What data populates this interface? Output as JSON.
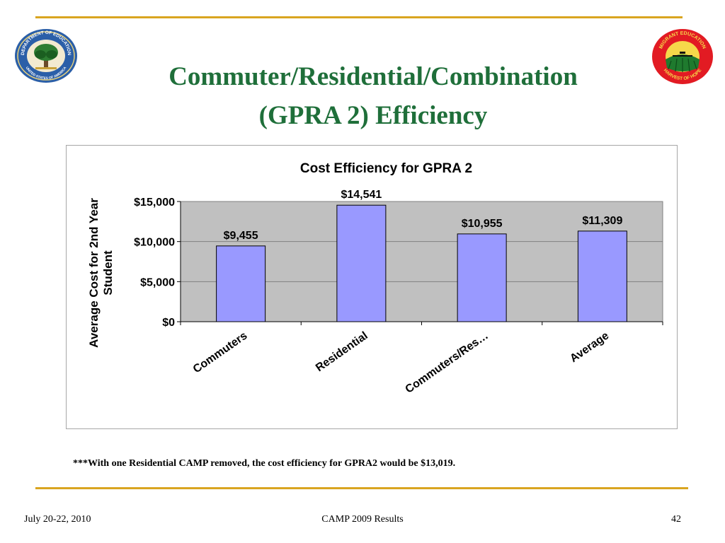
{
  "slide": {
    "title_line1": "Commuter/Residential/Combination",
    "title_line2": "(GPRA 2) Efficiency",
    "footnote": "***With one Residential CAMP removed, the cost efficiency for GPRA2 would be $13,019.",
    "footer": {
      "date": "July 20-22, 2010",
      "center": "CAMP 2009 Results",
      "page": "42"
    },
    "colors": {
      "accent_rule": "#d9a520",
      "title": "#1f6f3a",
      "bar": "#9999ff",
      "plot_bg": "#c0c0c0"
    }
  },
  "logos": {
    "left": {
      "icon": "department-of-education-seal-icon",
      "text_top": "DEPARTMENT OF EDUCATION",
      "text_bottom": "UNITED STATES OF AMERICA"
    },
    "right": {
      "icon": "migrant-education-harvest-of-hope-icon",
      "text_top": "MIGRANT EDUCATION",
      "text_bottom": "HARVEST OF HOPE"
    }
  },
  "chart_data": {
    "type": "bar",
    "title": "Cost Efficiency for GPRA 2",
    "ylabel": "Average Cost for 2nd Year Student",
    "ylabel_lines": [
      "Average Cost for 2nd Year",
      "Student"
    ],
    "xlabel": "",
    "categories": [
      "Commuters",
      "Residential",
      "Commuters/Res…",
      "Average"
    ],
    "values": [
      9455,
      14541,
      10955,
      11309
    ],
    "data_labels": [
      "$9,455",
      "$14,541",
      "$10,955",
      "$11,309"
    ],
    "ylim": [
      0,
      15000
    ],
    "yticks": [
      0,
      5000,
      10000,
      15000
    ],
    "ytick_labels": [
      "$0",
      "$5,000",
      "$10,000",
      "$15,000"
    ],
    "grid": true,
    "legend": "none"
  }
}
